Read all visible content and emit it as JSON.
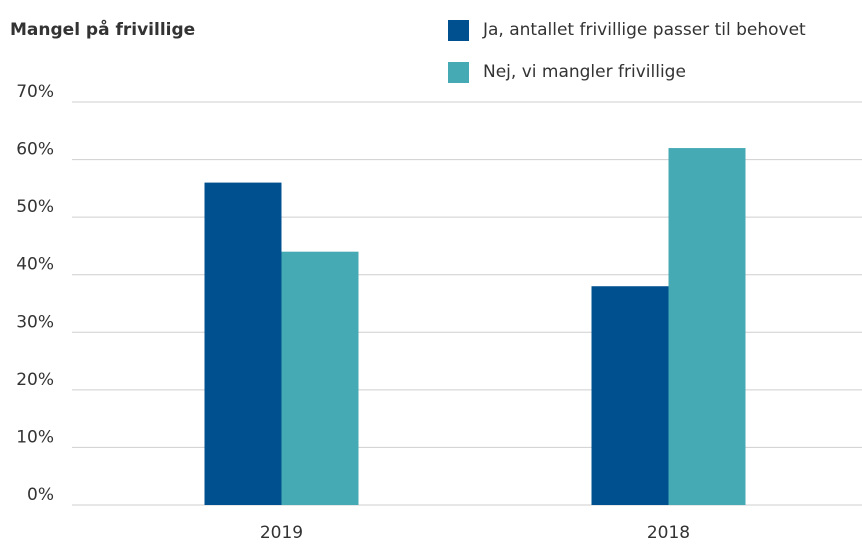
{
  "chart_data": {
    "type": "bar",
    "title": "Mangel på frivillige",
    "categories": [
      "2019",
      "2018"
    ],
    "series": [
      {
        "name": "Ja, antallet frivillige passer til behovet",
        "color": "#00508f",
        "values": [
          56,
          38
        ]
      },
      {
        "name": "Nej, vi mangler frivillige",
        "color": "#45aab4",
        "values": [
          44,
          62
        ]
      }
    ],
    "ylim": [
      0,
      70
    ],
    "yticks": [
      {
        "value": 0,
        "label": "0%"
      },
      {
        "value": 10,
        "label": "10%"
      },
      {
        "value": 20,
        "label": "20%"
      },
      {
        "value": 30,
        "label": "30%"
      },
      {
        "value": 40,
        "label": "40%"
      },
      {
        "value": 50,
        "label": "50%"
      },
      {
        "value": 60,
        "label": "60%"
      },
      {
        "value": 70,
        "label": "70%"
      }
    ],
    "grid": true,
    "legend": "top-right"
  }
}
